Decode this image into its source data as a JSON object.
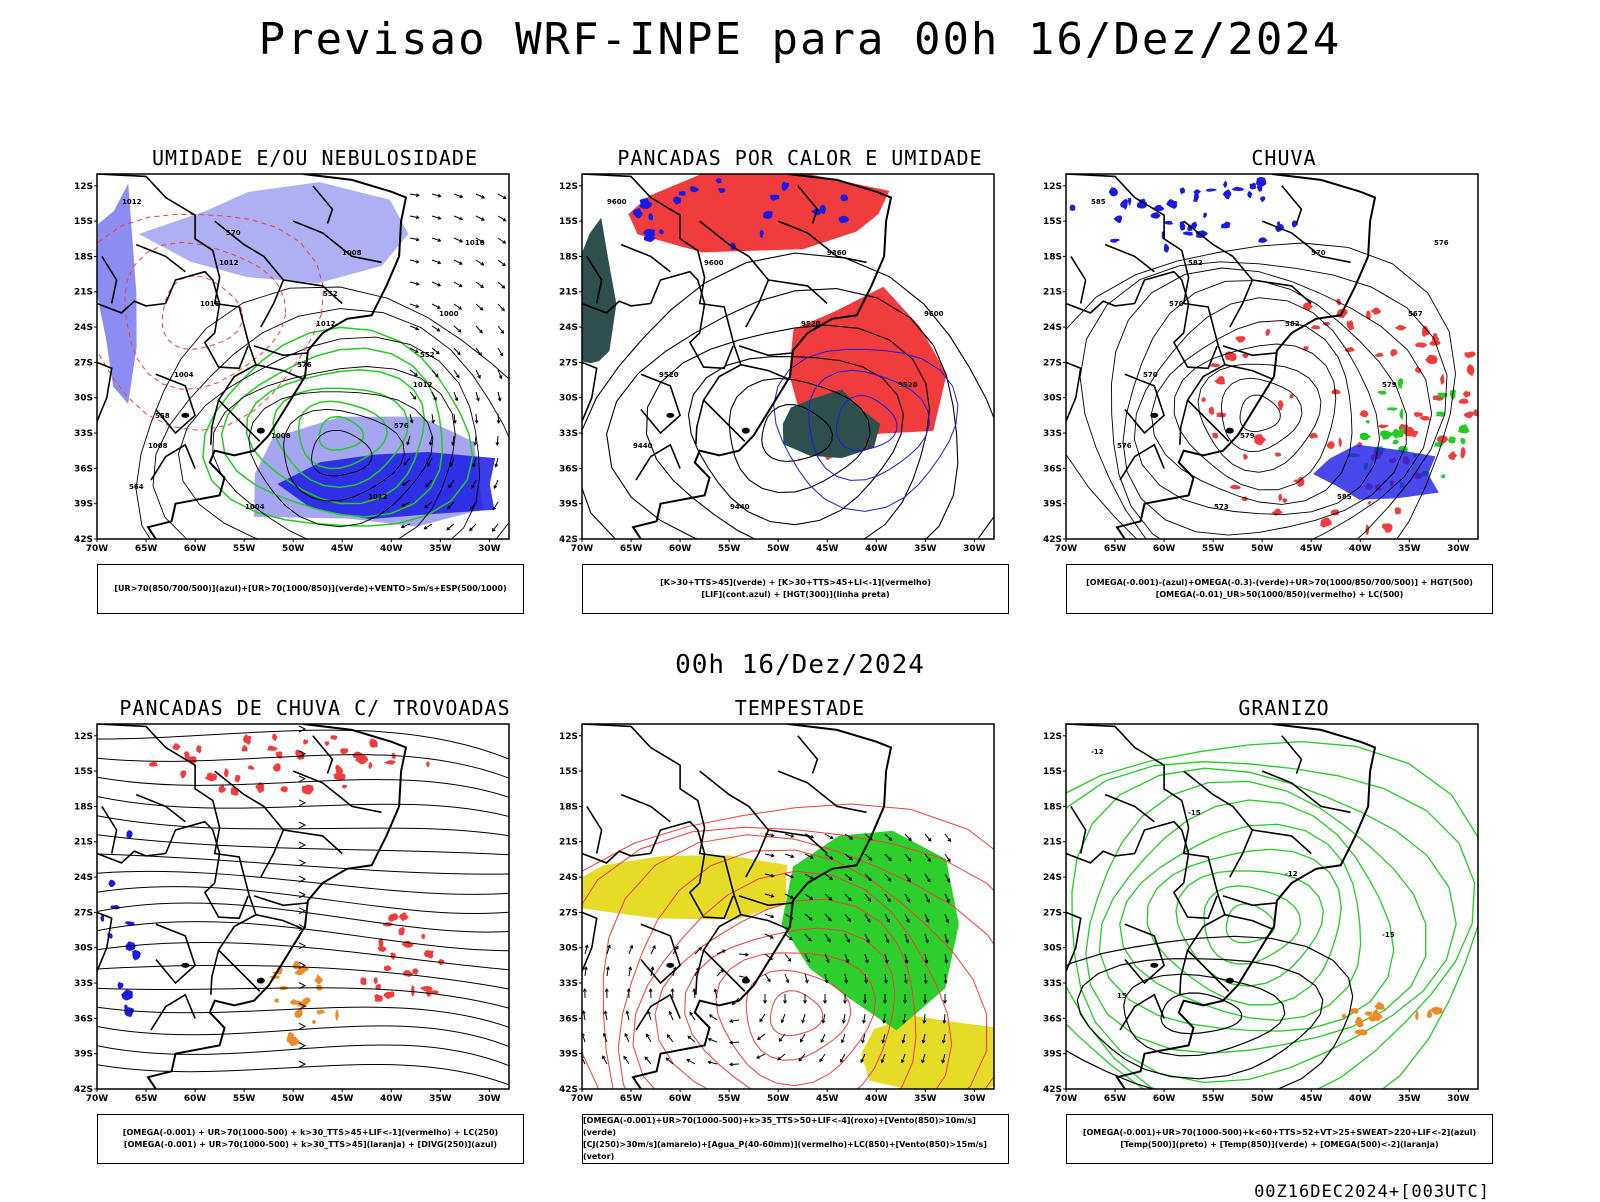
{
  "header": {
    "title": "Previsao WRF-INPE  para 00h 16/Dez/2024"
  },
  "mid_title": "00h 16/Dez/2024",
  "footer": "00Z16DEC2024+[003UTC]",
  "axes": {
    "lat_labels": [
      "12S",
      "15S",
      "18S",
      "21S",
      "24S",
      "27S",
      "30S",
      "33S",
      "36S",
      "39S",
      "42S"
    ],
    "lon_labels": [
      "70W",
      "65W",
      "60W",
      "55W",
      "50W",
      "45W",
      "40W",
      "35W",
      "30W"
    ]
  },
  "colors": {
    "blue_dark": "#1a1ae6",
    "blue_light": "#9b9bf0",
    "green": "#22cc22",
    "red": "#f03c3c",
    "dark_teal": "#2f4f4f",
    "yellow": "#e6dc28",
    "orange": "#ee8a28",
    "black": "#000000"
  },
  "panels": [
    {
      "title": "UMIDADE E/OU NEBULOSIDADE",
      "legend": [
        "[UR>70(850/700/500)](azul)+[UR>70(1000/850)](verde)+VENTO>5m/s+ESP(500/1000)"
      ],
      "contour_labels": [
        "1012",
        "1012",
        "1012",
        "1012",
        "1008",
        "1004",
        "1008",
        "1000",
        "1004",
        "1008",
        "1012",
        "1016",
        "1016",
        "576",
        "576",
        "564",
        "570",
        "552",
        "552",
        "558"
      ]
    },
    {
      "title": "PANCADAS POR CALOR E UMIDADE",
      "legend": [
        "[K>30+TTS>45](verde) + [K>30+TTS>45+LI<-1](vermelho)",
        "[LIF](cont.azul) + [HGT(300)](linha preta)"
      ],
      "contour_labels": [
        "9600",
        "9600",
        "9520",
        "9520",
        "9440",
        "9440",
        "9360",
        "9600",
        "9520"
      ]
    },
    {
      "title": "CHUVA",
      "legend": [
        "[OMEGA(-0.001)-(azul)+OMEGA(-0.3)-(verde)+UR>70(1000/850/700/500)] + HGT(500)",
        "[OMEGA(-0.01)_UR>50(1000/850)(vermelho) + LC(500)"
      ],
      "contour_labels": [
        "585",
        "582",
        "582",
        "579",
        "576",
        "573",
        "570",
        "567",
        "570",
        "579",
        "585",
        "576",
        "570"
      ]
    },
    {
      "title": "PANCADAS DE CHUVA C/ TROVOADAS",
      "legend": [
        "[OMEGA(-0.001) + UR>70(1000-500) + k>30_TTS>45+LIF<-1](vermelho) + LC(250)",
        "[OMEGA(-0.001) + UR>70(1000-500) + k>30_TTS>45](laranja) + [DIVG(250)](azul)"
      ],
      "contour_labels": []
    },
    {
      "title": "TEMPESTADE",
      "legend": [
        "[OMEGA(-0.001)+UR>70(1000-500)+k>35_TTS>50+LIF<-4](roxo)+[Vento(850)>10m/s](verde)",
        "[CJ(250)>30m/s](amarelo)+[Agua_P(40-60mm)](vermelho)+LC(850)+[Vento(850)>15m/s](vetor)"
      ],
      "contour_labels": []
    },
    {
      "title": "GRANIZO",
      "legend": [
        "[OMEGA(-0.001)+UR>70(1000-500)+k<60+TTS>52+VT>25+SWEAT>220+LIF<-2](azul)",
        "[Temp(500)](preto) + [Temp(850)](verde) + [OMEGA(500)<-2](laranja)"
      ],
      "contour_labels": [
        "-12",
        "-15",
        "-12",
        "-15",
        "15"
      ]
    }
  ]
}
